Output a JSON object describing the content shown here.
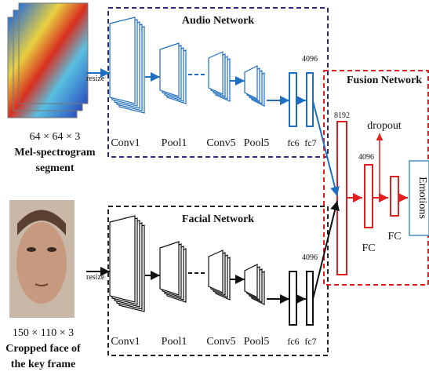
{
  "audio_network": {
    "title": "Audio Network",
    "resize": "resize",
    "layers": [
      "Conv1",
      "Pool1",
      "Conv5",
      "Pool5",
      "fc6",
      "fc7"
    ],
    "fc_size": "4096",
    "input_size": "64 × 64 × 3",
    "input_label": [
      "Mel-spectrogram",
      "segment"
    ]
  },
  "facial_network": {
    "title": "Facial Network",
    "resize": "resize",
    "layers": [
      "Conv1",
      "Pool1",
      "Conv5",
      "Pool5",
      "fc6",
      "fc7"
    ],
    "fc_size": "4096",
    "input_size": "150 × 110 × 3",
    "input_label": [
      "Cropped face of",
      "the key frame"
    ]
  },
  "fusion_network": {
    "title": "Fusion Network",
    "concat_size": "8192",
    "dropout": "dropout",
    "fc_size": "4096",
    "layers": [
      "FC",
      "FC"
    ],
    "output": "Emotions"
  }
}
